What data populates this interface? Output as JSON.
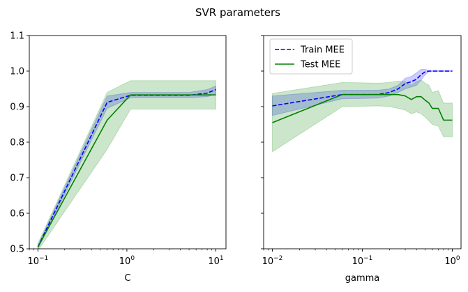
{
  "figure": {
    "title": "SVR parameters"
  },
  "chart_data": [
    {
      "type": "line",
      "xlabel": "C",
      "ylabel": "",
      "xscale": "log",
      "xlim": [
        0.08,
        13
      ],
      "ylim": [
        0.5,
        1.1
      ],
      "xticks": [
        {
          "value": 0.1,
          "base": "10",
          "exp": "−1"
        },
        {
          "value": 1,
          "base": "10",
          "exp": "0"
        },
        {
          "value": 10,
          "base": "10",
          "exp": "1"
        }
      ],
      "yticks": [
        {
          "value": 0.5,
          "label": "0.5"
        },
        {
          "value": 0.6,
          "label": "0.6"
        },
        {
          "value": 0.7,
          "label": "0.7"
        },
        {
          "value": 0.8,
          "label": "0.8"
        },
        {
          "value": 0.9,
          "label": "0.9"
        },
        {
          "value": 1.0,
          "label": "1.0"
        },
        {
          "value": 1.1,
          "label": "1.1"
        }
      ],
      "show_ytick_labels": true,
      "legend": null,
      "series": [
        {
          "name": "Train MEE",
          "style": "dashed",
          "color": "#0000ff",
          "band_color": "#0000ff",
          "x": [
            0.1,
            0.6,
            1.1,
            2,
            5,
            8,
            10
          ],
          "y": [
            0.505,
            0.912,
            0.932,
            0.932,
            0.932,
            0.938,
            0.948
          ],
          "lower": [
            0.5,
            0.895,
            0.925,
            0.925,
            0.925,
            0.928,
            0.935
          ],
          "upper": [
            0.51,
            0.93,
            0.94,
            0.94,
            0.94,
            0.948,
            0.958
          ]
        },
        {
          "name": "Test MEE",
          "style": "solid",
          "color": "#008000",
          "band_color": "#008000",
          "x": [
            0.1,
            0.6,
            1.1,
            2,
            5,
            8,
            10
          ],
          "y": [
            0.505,
            0.862,
            0.933,
            0.933,
            0.933,
            0.933,
            0.933
          ],
          "lower": [
            0.495,
            0.78,
            0.893,
            0.893,
            0.893,
            0.893,
            0.893
          ],
          "upper": [
            0.515,
            0.94,
            0.973,
            0.973,
            0.973,
            0.973,
            0.973
          ]
        }
      ]
    },
    {
      "type": "line",
      "xlabel": "gamma",
      "ylabel": "",
      "xscale": "log",
      "xlim": [
        0.008,
        1.25
      ],
      "ylim": [
        0.5,
        1.1
      ],
      "xticks": [
        {
          "value": 0.01,
          "base": "10",
          "exp": "−2"
        },
        {
          "value": 0.1,
          "base": "10",
          "exp": "−1"
        },
        {
          "value": 1,
          "base": "10",
          "exp": "0"
        }
      ],
      "yticks": [
        {
          "value": 0.5,
          "label": ""
        },
        {
          "value": 0.6,
          "label": ""
        },
        {
          "value": 0.7,
          "label": ""
        },
        {
          "value": 0.8,
          "label": ""
        },
        {
          "value": 0.9,
          "label": ""
        },
        {
          "value": 1.0,
          "label": ""
        },
        {
          "value": 1.1,
          "label": ""
        }
      ],
      "show_ytick_labels": false,
      "legend": {
        "position": "upper-left",
        "entries": [
          "Train MEE",
          "Test MEE"
        ]
      },
      "series": [
        {
          "name": "Train MEE",
          "style": "dashed",
          "color": "#0000ff",
          "band_color": "#0000ff",
          "x": [
            0.01,
            0.06,
            0.15,
            0.2,
            0.25,
            0.3,
            0.35,
            0.4,
            0.45,
            0.5,
            0.55,
            0.6,
            0.7,
            0.8,
            0.9,
            1.0
          ],
          "y": [
            0.902,
            0.934,
            0.934,
            0.94,
            0.95,
            0.965,
            0.97,
            0.977,
            0.99,
            0.998,
            1.0,
            1.0,
            1.0,
            1.0,
            1.0,
            1.0
          ],
          "lower": [
            0.875,
            0.922,
            0.924,
            0.93,
            0.94,
            0.95,
            0.955,
            0.96,
            0.975,
            0.99,
            0.998,
            0.999,
            0.999,
            0.999,
            0.999,
            0.999
          ],
          "upper": [
            0.93,
            0.946,
            0.946,
            0.95,
            0.96,
            0.98,
            0.985,
            0.995,
            1.005,
            1.005,
            1.002,
            1.001,
            1.001,
            1.001,
            1.001,
            1.001
          ]
        },
        {
          "name": "Test MEE",
          "style": "solid",
          "color": "#008000",
          "band_color": "#008000",
          "x": [
            0.01,
            0.06,
            0.15,
            0.2,
            0.25,
            0.3,
            0.35,
            0.4,
            0.45,
            0.5,
            0.55,
            0.6,
            0.7,
            0.8,
            0.9,
            1.0
          ],
          "y": [
            0.855,
            0.934,
            0.934,
            0.934,
            0.934,
            0.93,
            0.92,
            0.928,
            0.928,
            0.918,
            0.91,
            0.895,
            0.895,
            0.862,
            0.862,
            0.862
          ],
          "lower": [
            0.773,
            0.9,
            0.902,
            0.9,
            0.895,
            0.89,
            0.88,
            0.885,
            0.88,
            0.87,
            0.86,
            0.85,
            0.845,
            0.815,
            0.815,
            0.815
          ],
          "upper": [
            0.937,
            0.968,
            0.966,
            0.968,
            0.972,
            0.97,
            0.96,
            0.97,
            0.975,
            0.966,
            0.96,
            0.94,
            0.945,
            0.91,
            0.91,
            0.91
          ]
        }
      ]
    }
  ]
}
